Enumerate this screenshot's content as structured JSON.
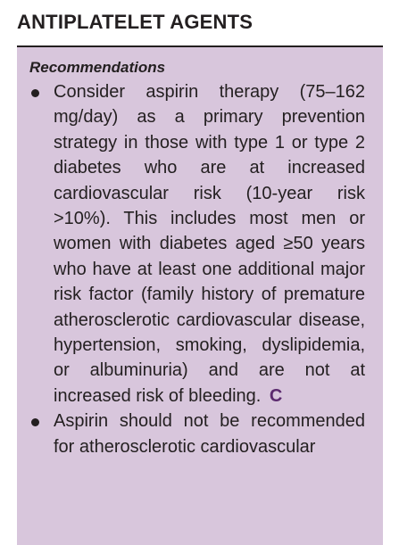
{
  "section": {
    "title": "ANTIPLATELET AGENTS"
  },
  "box": {
    "label": "Recommendations",
    "background_color": "#d8c6dc",
    "grade_color": "#5b2a6e",
    "items": [
      {
        "text": "Consider aspirin therapy (75–162 mg/day) as a primary prevention strategy in those with type 1 or type 2 diabetes who are at increased cardiovascular risk (10-year risk >10%). This includes most men or women with diabetes aged ≥50 years who have at least one additional major risk factor (family history of premature atherosclerotic cardiovascular disease, hypertension, smoking, dyslipidemia, or albuminuria) and are not at increased risk of bleeding.",
        "grade": "C"
      },
      {
        "text": "Aspirin should not be recommended for atherosclerotic cardiovascular",
        "grade": ""
      }
    ]
  }
}
